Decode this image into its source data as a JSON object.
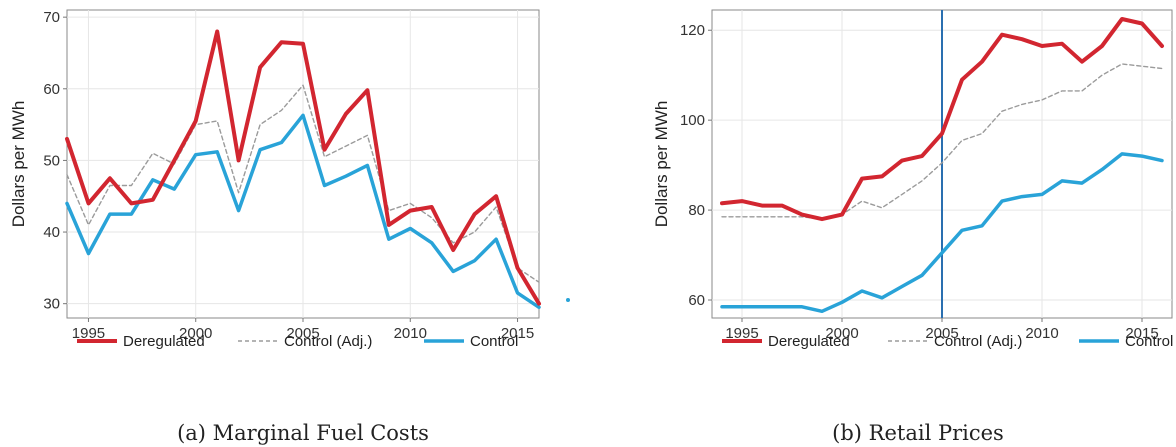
{
  "chart_data": [
    {
      "type": "line",
      "caption": "(a) Marginal Fuel Costs",
      "ylabel": "Dollars per MWh",
      "xlim": [
        1994,
        2016
      ],
      "ylim": [
        28,
        71
      ],
      "xticks": [
        1995,
        2000,
        2005,
        2010,
        2015
      ],
      "yticks": [
        30,
        40,
        50,
        60,
        70
      ],
      "grid": true,
      "legend_position": "bottom",
      "series": [
        {
          "name": "Deregulated",
          "color": "#d22630",
          "style": "solid-thick",
          "x": [
            1994,
            1995,
            1996,
            1997,
            1998,
            1999,
            2000,
            2001,
            2002,
            2003,
            2004,
            2005,
            2006,
            2007,
            2008,
            2009,
            2010,
            2011,
            2012,
            2013,
            2014,
            2015,
            2016
          ],
          "values": [
            53,
            44,
            47.5,
            44,
            44.5,
            50,
            55.5,
            68,
            50,
            63,
            66.5,
            66.3,
            51.5,
            56.5,
            59.8,
            41,
            43,
            43.5,
            37.5,
            42.5,
            45,
            35,
            30
          ]
        },
        {
          "name": "Control (Adj.)",
          "color": "#9b9b9b",
          "style": "dashed",
          "x": [
            1994,
            1995,
            1996,
            1997,
            1998,
            1999,
            2000,
            2001,
            2002,
            2003,
            2004,
            2005,
            2006,
            2007,
            2008,
            2009,
            2010,
            2011,
            2012,
            2013,
            2014,
            2015,
            2016
          ],
          "values": [
            48,
            41,
            46.5,
            46.5,
            51,
            49.5,
            55,
            55.5,
            45.5,
            55,
            57,
            60.5,
            50.5,
            52,
            53.5,
            43,
            44,
            42,
            38.5,
            40,
            43.5,
            35,
            33
          ]
        },
        {
          "name": "Control",
          "color": "#29a3d8",
          "style": "solid",
          "x": [
            1994,
            1995,
            1996,
            1997,
            1998,
            1999,
            2000,
            2001,
            2002,
            2003,
            2004,
            2005,
            2006,
            2007,
            2008,
            2009,
            2010,
            2011,
            2012,
            2013,
            2014,
            2015,
            2016
          ],
          "values": [
            44,
            37,
            42.5,
            42.5,
            47.3,
            46,
            50.8,
            51.2,
            43,
            51.5,
            52.5,
            56.3,
            46.5,
            47.8,
            49.3,
            39,
            40.5,
            38.5,
            34.5,
            36,
            39,
            31.5,
            29.5
          ]
        }
      ]
    },
    {
      "type": "line",
      "caption": "(b) Retail Prices",
      "ylabel": "Dollars per MWh",
      "xlim": [
        1993.5,
        2016.5
      ],
      "ylim": [
        56,
        124.5
      ],
      "xticks": [
        1995,
        2000,
        2005,
        2010,
        2015
      ],
      "yticks": [
        60,
        80,
        100,
        120
      ],
      "grid": true,
      "vline": 2005,
      "vline_color": "#2a6fb0",
      "legend_position": "bottom",
      "series": [
        {
          "name": "Deregulated",
          "color": "#d22630",
          "style": "solid-thick",
          "x": [
            1994,
            1995,
            1996,
            1997,
            1998,
            1999,
            2000,
            2001,
            2002,
            2003,
            2004,
            2005,
            2006,
            2007,
            2008,
            2009,
            2010,
            2011,
            2012,
            2013,
            2014,
            2015,
            2016
          ],
          "values": [
            81.5,
            82,
            81,
            81,
            79,
            78,
            79,
            87,
            87.5,
            91,
            92,
            97,
            109,
            113,
            119,
            118,
            116.5,
            117,
            113,
            116.5,
            122.5,
            121.5,
            116.5
          ]
        },
        {
          "name": "Control (Adj.)",
          "color": "#9b9b9b",
          "style": "dashed",
          "x": [
            1994,
            1995,
            1996,
            1997,
            1998,
            1999,
            2000,
            2001,
            2002,
            2003,
            2004,
            2005,
            2006,
            2007,
            2008,
            2009,
            2010,
            2011,
            2012,
            2013,
            2014,
            2015,
            2016
          ],
          "values": [
            78.5,
            78.5,
            78.5,
            78.5,
            78.5,
            78,
            79,
            82,
            80.5,
            83.5,
            86.5,
            90.5,
            95.5,
            97,
            102,
            103.5,
            104.5,
            106.5,
            106.5,
            110,
            112.5,
            112,
            111.5
          ]
        },
        {
          "name": "Control",
          "color": "#29a3d8",
          "style": "solid",
          "x": [
            1994,
            1995,
            1996,
            1997,
            1998,
            1999,
            2000,
            2001,
            2002,
            2003,
            2004,
            2005,
            2006,
            2007,
            2008,
            2009,
            2010,
            2011,
            2012,
            2013,
            2014,
            2015,
            2016
          ],
          "values": [
            58.5,
            58.5,
            58.5,
            58.5,
            58.5,
            57.5,
            59.5,
            62,
            60.5,
            63,
            65.5,
            70.5,
            75.5,
            76.5,
            82,
            83,
            83.5,
            86.5,
            86,
            89,
            92.5,
            92,
            91
          ]
        }
      ]
    }
  ]
}
